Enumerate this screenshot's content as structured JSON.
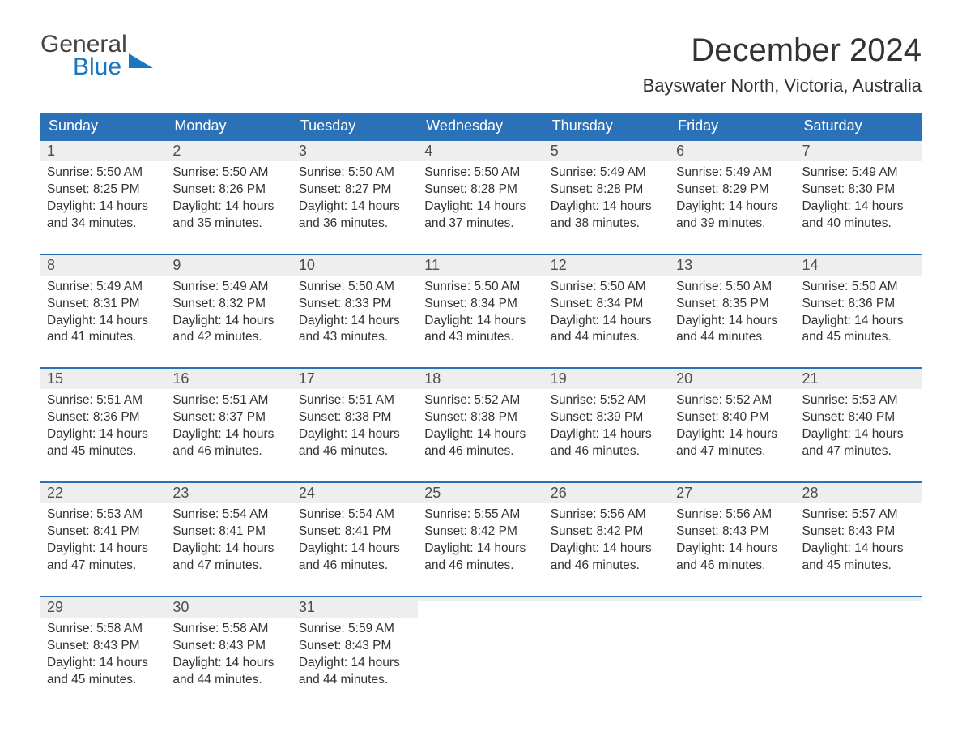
{
  "logo": {
    "line1": "General",
    "line2": "Blue",
    "color_text": "#444444",
    "color_blue": "#1976c1"
  },
  "title": "December 2024",
  "location": "Bayswater North, Victoria, Australia",
  "colors": {
    "header_bg": "#2a71b8",
    "header_text": "#ffffff",
    "daynum_bg": "#eeeeee",
    "week_border": "#2a71b8",
    "body_text": "#333333"
  },
  "day_headers": [
    "Sunday",
    "Monday",
    "Tuesday",
    "Wednesday",
    "Thursday",
    "Friday",
    "Saturday"
  ],
  "weeks": [
    [
      {
        "n": "1",
        "sr": "5:50 AM",
        "ss": "8:25 PM",
        "dl": "14 hours and 34 minutes."
      },
      {
        "n": "2",
        "sr": "5:50 AM",
        "ss": "8:26 PM",
        "dl": "14 hours and 35 minutes."
      },
      {
        "n": "3",
        "sr": "5:50 AM",
        "ss": "8:27 PM",
        "dl": "14 hours and 36 minutes."
      },
      {
        "n": "4",
        "sr": "5:50 AM",
        "ss": "8:28 PM",
        "dl": "14 hours and 37 minutes."
      },
      {
        "n": "5",
        "sr": "5:49 AM",
        "ss": "8:28 PM",
        "dl": "14 hours and 38 minutes."
      },
      {
        "n": "6",
        "sr": "5:49 AM",
        "ss": "8:29 PM",
        "dl": "14 hours and 39 minutes."
      },
      {
        "n": "7",
        "sr": "5:49 AM",
        "ss": "8:30 PM",
        "dl": "14 hours and 40 minutes."
      }
    ],
    [
      {
        "n": "8",
        "sr": "5:49 AM",
        "ss": "8:31 PM",
        "dl": "14 hours and 41 minutes."
      },
      {
        "n": "9",
        "sr": "5:49 AM",
        "ss": "8:32 PM",
        "dl": "14 hours and 42 minutes."
      },
      {
        "n": "10",
        "sr": "5:50 AM",
        "ss": "8:33 PM",
        "dl": "14 hours and 43 minutes."
      },
      {
        "n": "11",
        "sr": "5:50 AM",
        "ss": "8:34 PM",
        "dl": "14 hours and 43 minutes."
      },
      {
        "n": "12",
        "sr": "5:50 AM",
        "ss": "8:34 PM",
        "dl": "14 hours and 44 minutes."
      },
      {
        "n": "13",
        "sr": "5:50 AM",
        "ss": "8:35 PM",
        "dl": "14 hours and 44 minutes."
      },
      {
        "n": "14",
        "sr": "5:50 AM",
        "ss": "8:36 PM",
        "dl": "14 hours and 45 minutes."
      }
    ],
    [
      {
        "n": "15",
        "sr": "5:51 AM",
        "ss": "8:36 PM",
        "dl": "14 hours and 45 minutes."
      },
      {
        "n": "16",
        "sr": "5:51 AM",
        "ss": "8:37 PM",
        "dl": "14 hours and 46 minutes."
      },
      {
        "n": "17",
        "sr": "5:51 AM",
        "ss": "8:38 PM",
        "dl": "14 hours and 46 minutes."
      },
      {
        "n": "18",
        "sr": "5:52 AM",
        "ss": "8:38 PM",
        "dl": "14 hours and 46 minutes."
      },
      {
        "n": "19",
        "sr": "5:52 AM",
        "ss": "8:39 PM",
        "dl": "14 hours and 46 minutes."
      },
      {
        "n": "20",
        "sr": "5:52 AM",
        "ss": "8:40 PM",
        "dl": "14 hours and 47 minutes."
      },
      {
        "n": "21",
        "sr": "5:53 AM",
        "ss": "8:40 PM",
        "dl": "14 hours and 47 minutes."
      }
    ],
    [
      {
        "n": "22",
        "sr": "5:53 AM",
        "ss": "8:41 PM",
        "dl": "14 hours and 47 minutes."
      },
      {
        "n": "23",
        "sr": "5:54 AM",
        "ss": "8:41 PM",
        "dl": "14 hours and 47 minutes."
      },
      {
        "n": "24",
        "sr": "5:54 AM",
        "ss": "8:41 PM",
        "dl": "14 hours and 46 minutes."
      },
      {
        "n": "25",
        "sr": "5:55 AM",
        "ss": "8:42 PM",
        "dl": "14 hours and 46 minutes."
      },
      {
        "n": "26",
        "sr": "5:56 AM",
        "ss": "8:42 PM",
        "dl": "14 hours and 46 minutes."
      },
      {
        "n": "27",
        "sr": "5:56 AM",
        "ss": "8:43 PM",
        "dl": "14 hours and 46 minutes."
      },
      {
        "n": "28",
        "sr": "5:57 AM",
        "ss": "8:43 PM",
        "dl": "14 hours and 45 minutes."
      }
    ],
    [
      {
        "n": "29",
        "sr": "5:58 AM",
        "ss": "8:43 PM",
        "dl": "14 hours and 45 minutes."
      },
      {
        "n": "30",
        "sr": "5:58 AM",
        "ss": "8:43 PM",
        "dl": "14 hours and 44 minutes."
      },
      {
        "n": "31",
        "sr": "5:59 AM",
        "ss": "8:43 PM",
        "dl": "14 hours and 44 minutes."
      },
      {
        "empty": true
      },
      {
        "empty": true
      },
      {
        "empty": true
      },
      {
        "empty": true
      }
    ]
  ],
  "labels": {
    "sunrise": "Sunrise: ",
    "sunset": "Sunset: ",
    "daylight": "Daylight: "
  }
}
